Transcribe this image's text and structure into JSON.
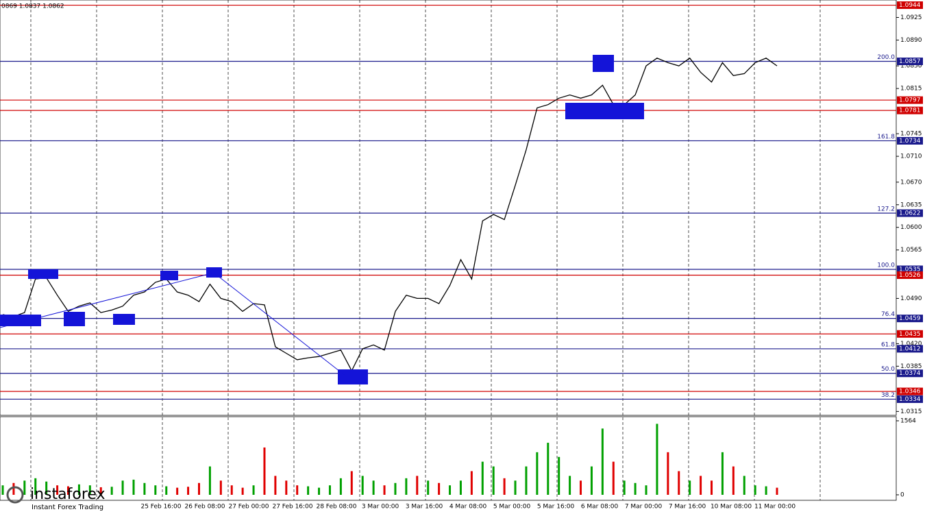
{
  "chart_data": {
    "type": "line",
    "header": "0869 1.0837 1.0862",
    "watermark": {
      "brand": "instaforex",
      "slogan": "Instant Forex Trading"
    },
    "categories": [
      null,
      null,
      null,
      null,
      null,
      null,
      null,
      null,
      null,
      null,
      null,
      null,
      null,
      null,
      null,
      null,
      null,
      null,
      null,
      null,
      null,
      null,
      null,
      null,
      null,
      null,
      null,
      null,
      null,
      null,
      null,
      null,
      null,
      null,
      null,
      null,
      null,
      null,
      null,
      null,
      null,
      null,
      null,
      null,
      null,
      null,
      null,
      null,
      null,
      null,
      null,
      null,
      null,
      null,
      null,
      null,
      null,
      null,
      null,
      null,
      null,
      null,
      null,
      null,
      null,
      null,
      null,
      null,
      null,
      null,
      null,
      null
    ],
    "series": [
      {
        "color": "#000000",
        "values": [
          1.0465,
          1.0462,
          1.0468,
          1.052,
          1.0522,
          1.0495,
          1.047,
          1.0478,
          1.0483,
          1.0468,
          1.0472,
          1.0478,
          1.0495,
          1.05,
          1.0515,
          1.052,
          1.05,
          1.0495,
          1.0485,
          1.0512,
          1.049,
          1.0485,
          1.047,
          1.0482,
          1.048,
          1.0415,
          1.0405,
          1.0395,
          1.0398,
          1.04,
          1.0405,
          1.041,
          1.0378,
          1.0412,
          1.0418,
          1.041,
          1.047,
          1.0495,
          1.049,
          1.049,
          1.0482,
          1.051,
          1.055,
          1.052,
          1.061,
          1.062,
          1.0612,
          1.0665,
          1.072,
          1.0785,
          1.079,
          1.08,
          1.0805,
          1.08,
          1.0805,
          1.082,
          1.079,
          1.079,
          1.0805,
          1.085,
          1.0862,
          1.0855,
          1.085,
          1.0862,
          1.084,
          1.0825,
          1.0855,
          1.0835,
          1.0838,
          1.0855,
          1.0862,
          1.085
        ]
      }
    ],
    "volume": {
      "up_color": "#00a000",
      "down_color": "#e00000",
      "values": [
        200,
        250,
        300,
        350,
        280,
        200,
        180,
        220,
        200,
        160,
        170,
        300,
        320,
        250,
        200,
        180,
        150,
        170,
        250,
        600,
        300,
        200,
        150,
        200,
        1000,
        400,
        300,
        200,
        180,
        150,
        200,
        350,
        500,
        400,
        300,
        200,
        250,
        350,
        400,
        300,
        250,
        200,
        300,
        500,
        700,
        600,
        350,
        300,
        600,
        900,
        1100,
        800,
        400,
        300,
        600,
        1400,
        700,
        300,
        250,
        200,
        1500,
        900,
        500,
        300,
        400,
        300,
        900,
        600,
        400,
        200,
        180,
        150
      ],
      "ylim": [
        0,
        1564
      ],
      "yticks": [
        0,
        1564
      ]
    },
    "ylim": [
      1.0309,
      1.0952
    ],
    "yticks": [
      {
        "value": 1.0925,
        "label": "1.0925"
      },
      {
        "value": 1.089,
        "label": "1.0890"
      },
      {
        "value": 1.085,
        "label": "1.0850"
      },
      {
        "value": 1.0815,
        "label": "1.0815"
      },
      {
        "value": 1.0745,
        "label": "1.0745"
      },
      {
        "value": 1.071,
        "label": "1.0710"
      },
      {
        "value": 1.067,
        "label": "1.0670"
      },
      {
        "value": 1.0635,
        "label": "1.0635"
      },
      {
        "value": 1.06,
        "label": "1.0600"
      },
      {
        "value": 1.0565,
        "label": "1.0565"
      },
      {
        "value": 1.049,
        "label": "1.0490"
      },
      {
        "value": 1.042,
        "label": "1.0420"
      },
      {
        "value": 1.0385,
        "label": "1.0385"
      },
      {
        "value": 1.0315,
        "label": "1.0315"
      }
    ],
    "levels": [
      {
        "value": 1.0944,
        "color": "#d00000"
      },
      {
        "value": 1.0857,
        "color": "#1a1a8c",
        "fib": "200.0"
      },
      {
        "value": 1.0797,
        "color": "#d00000"
      },
      {
        "value": 1.0781,
        "color": "#d00000"
      },
      {
        "value": 1.0734,
        "color": "#1a1a8c",
        "fib": "161.8"
      },
      {
        "value": 1.0622,
        "color": "#1a1a8c",
        "fib": "127.2"
      },
      {
        "value": 1.0535,
        "color": "#1a1a8c",
        "fib": "100.0"
      },
      {
        "value": 1.0526,
        "color": "#d00000"
      },
      {
        "value": 1.0459,
        "color": "#1a1a8c",
        "fib": "76.4"
      },
      {
        "value": 1.0435,
        "color": "#d00000"
      },
      {
        "value": 1.0412,
        "color": "#1a1a8c",
        "fib": "61.8"
      },
      {
        "value": 1.0374,
        "color": "#1a1a8c",
        "fib": "50.0"
      },
      {
        "value": 1.0346,
        "color": "#d00000"
      },
      {
        "value": 1.0334,
        "color": "#1a1a8c",
        "fib": "38.2"
      }
    ],
    "time_labels": [
      "25 Feb 16:00",
      "26 Feb 08:00",
      "27 Feb 00:00",
      "27 Feb 16:00",
      "28 Feb 08:00",
      "3 Mar 00:00",
      "3 Mar 16:00",
      "4 Mar 08:00",
      "5 Mar 00:00",
      "5 Mar 16:00",
      "6 Mar 08:00",
      "7 Mar 00:00",
      "7 Mar 16:00",
      "10 Mar 08:00",
      "11 Mar 00:00"
    ]
  }
}
